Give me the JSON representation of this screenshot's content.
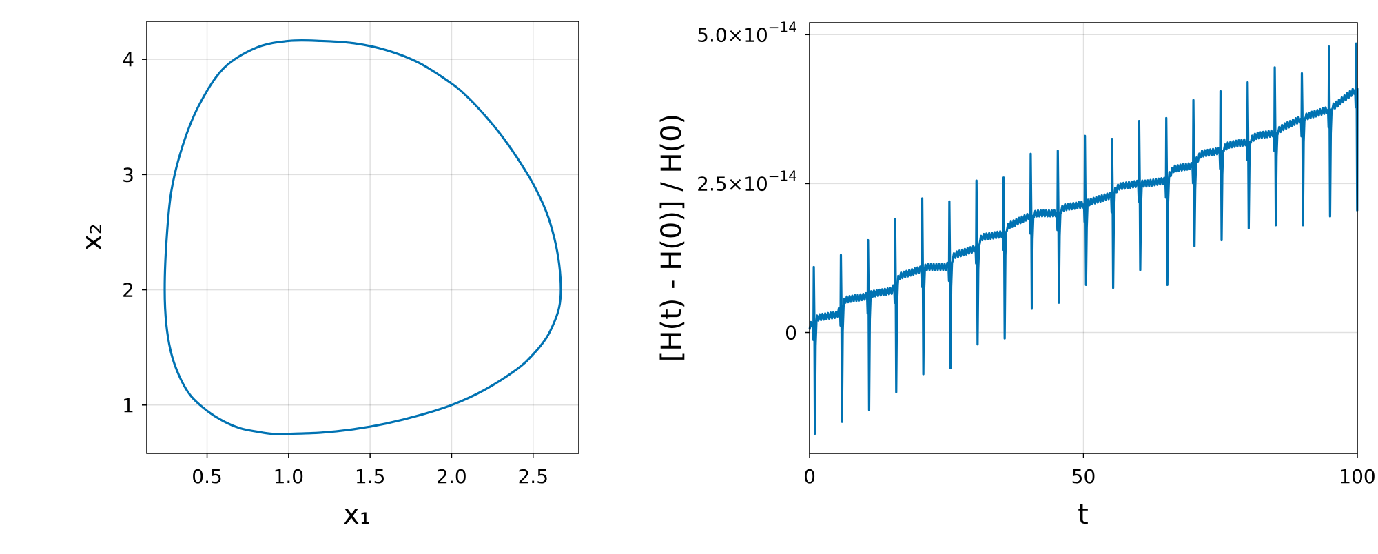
{
  "chart_data": [
    {
      "type": "line",
      "title": "",
      "xlabel": "x₁",
      "ylabel": "x₂",
      "xlim": [
        0.13,
        2.78
      ],
      "ylim": [
        0.58,
        4.33
      ],
      "x_ticks": [
        {
          "value": 0.5,
          "label": "0.5"
        },
        {
          "value": 1.0,
          "label": "1.0"
        },
        {
          "value": 1.5,
          "label": "1.5"
        },
        {
          "value": 2.0,
          "label": "2.0"
        },
        {
          "value": 2.5,
          "label": "2.5"
        }
      ],
      "y_ticks": [
        {
          "value": 1,
          "label": "1"
        },
        {
          "value": 2,
          "label": "2"
        },
        {
          "value": 3,
          "label": "3"
        },
        {
          "value": 4,
          "label": "4"
        }
      ],
      "grid": true,
      "color": "#0072b2",
      "series": [
        {
          "x": [
            1.0,
            1.2,
            1.4,
            1.6,
            1.8,
            2.0,
            2.2,
            2.4,
            2.5,
            2.58,
            2.63,
            2.66,
            2.67,
            2.66,
            2.63,
            2.58,
            2.5,
            2.4,
            2.3,
            2.2,
            2.1,
            2.0,
            1.8,
            1.6,
            1.4,
            1.2,
            1.0,
            0.8,
            0.6,
            0.45,
            0.35,
            0.28,
            0.25,
            0.24,
            0.25,
            0.28,
            0.33,
            0.4,
            0.5,
            0.6,
            0.7,
            0.8,
            0.9,
            1.0
          ],
          "y": [
            0.75,
            0.76,
            0.79,
            0.84,
            0.91,
            1.0,
            1.13,
            1.31,
            1.44,
            1.58,
            1.72,
            1.85,
            2.0,
            2.22,
            2.45,
            2.68,
            2.92,
            3.15,
            3.35,
            3.52,
            3.67,
            3.79,
            3.97,
            4.08,
            4.14,
            4.16,
            4.16,
            4.1,
            3.92,
            3.6,
            3.25,
            2.85,
            2.4,
            2.0,
            1.7,
            1.45,
            1.25,
            1.08,
            0.95,
            0.86,
            0.8,
            0.77,
            0.75,
            0.75
          ]
        }
      ]
    },
    {
      "type": "line",
      "title": "",
      "xlabel": "t",
      "ylabel": "[H(t) - H(0)] / H(0)",
      "xlim": [
        0,
        100
      ],
      "ylim": [
        -2.03e-14,
        5.2e-14
      ],
      "x_ticks": [
        {
          "value": 0,
          "label": "0"
        },
        {
          "value": 50,
          "label": "50"
        },
        {
          "value": 100,
          "label": "100"
        }
      ],
      "y_ticks": [
        {
          "value": 0,
          "mantissa": "0",
          "exponent": ""
        },
        {
          "value": 2.5e-14,
          "mantissa": "2.5×10",
          "exponent": "−14"
        },
        {
          "value": 5e-14,
          "mantissa": "5.0×10",
          "exponent": "−14"
        }
      ],
      "grid": true,
      "color": "#0072b2",
      "period": 4.95,
      "events": [
        {
          "t": 0.75,
          "spike": 1.1e-14,
          "dip": -1.7e-14
        },
        {
          "t": 5.7,
          "spike": 1.3e-14,
          "dip": -1.5e-14
        },
        {
          "t": 10.65,
          "spike": 1.55e-14,
          "dip": -1.3e-14
        },
        {
          "t": 15.6,
          "spike": 1.9e-14,
          "dip": -1e-14
        },
        {
          "t": 20.55,
          "spike": 2.25e-14,
          "dip": -7e-15
        },
        {
          "t": 25.5,
          "spike": 2.2e-14,
          "dip": -6e-15
        },
        {
          "t": 30.45,
          "spike": 2.55e-14,
          "dip": -2e-15
        },
        {
          "t": 35.4,
          "spike": 2.6e-14,
          "dip": -1e-15
        },
        {
          "t": 40.35,
          "spike": 3e-14,
          "dip": 4e-15
        },
        {
          "t": 45.3,
          "spike": 3.05e-14,
          "dip": 5e-15
        },
        {
          "t": 50.25,
          "spike": 3.3e-14,
          "dip": 8e-15
        },
        {
          "t": 55.2,
          "spike": 3.25e-14,
          "dip": 7.5e-15
        },
        {
          "t": 60.15,
          "spike": 3.55e-14,
          "dip": 1.05e-14
        },
        {
          "t": 65.1,
          "spike": 3.6e-14,
          "dip": 8e-15
        },
        {
          "t": 70.05,
          "spike": 3.9e-14,
          "dip": 1.45e-14
        },
        {
          "t": 75.0,
          "spike": 4.05e-14,
          "dip": 1.55e-14
        },
        {
          "t": 79.95,
          "spike": 4.2e-14,
          "dip": 1.75e-14
        },
        {
          "t": 84.9,
          "spike": 4.45e-14,
          "dip": 1.8e-14
        },
        {
          "t": 89.85,
          "spike": 4.35e-14,
          "dip": 1.8e-14
        },
        {
          "t": 94.8,
          "spike": 4.8e-14,
          "dip": 1.95e-14
        },
        {
          "t": 99.75,
          "spike": 4.85e-14,
          "dip": 2.05e-14
        }
      ],
      "baseline": {
        "t": [
          0,
          1.5,
          5.0,
          6.5,
          10.0,
          11.5,
          15.0,
          16.5,
          20.0,
          21.5,
          25.0,
          26.5,
          30.0,
          31.5,
          35.0,
          36.5,
          40.0,
          41.5,
          45.0,
          46.5,
          50.0,
          51.5,
          55.0,
          56.5,
          60.0,
          61.5,
          65.0,
          66.5,
          70.0,
          71.5,
          75.0,
          76.5,
          80.0,
          81.5,
          85.0,
          86.5,
          90.0,
          91.5,
          95.0,
          96.5,
          100
        ],
        "value": [
          1e-15,
          2.5e-15,
          3e-15,
          5.5e-15,
          6e-15,
          6.5e-15,
          7e-15,
          9.5e-15,
          1.05e-14,
          1.1e-14,
          1.1e-14,
          1.3e-14,
          1.4e-14,
          1.6e-14,
          1.65e-14,
          1.8e-14,
          1.95e-14,
          2e-14,
          2e-14,
          2.1e-14,
          2.15e-14,
          2.2e-14,
          2.3e-14,
          2.45e-14,
          2.5e-14,
          2.5e-14,
          2.55e-14,
          2.75e-14,
          2.8e-14,
          3e-14,
          3.05e-14,
          3.15e-14,
          3.2e-14,
          3.3e-14,
          3.35e-14,
          3.45e-14,
          3.6e-14,
          3.65e-14,
          3.75e-14,
          3.85e-14,
          4.1e-14
        ]
      }
    }
  ]
}
